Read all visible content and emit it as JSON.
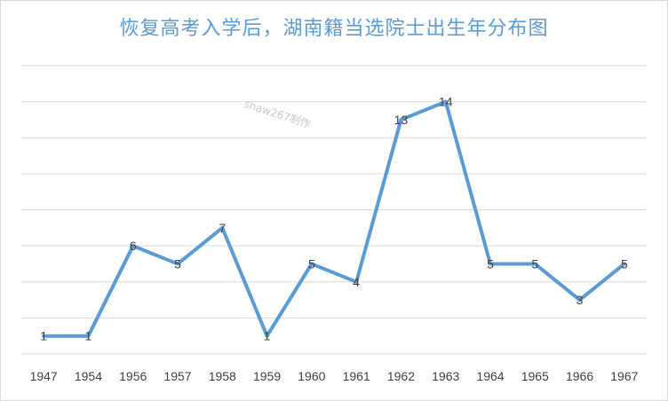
{
  "chart_data": {
    "type": "line",
    "title": "恢复高考入学后，湖南籍当选院士出生年分布图",
    "watermark": "shaw267制作",
    "categories": [
      "1947",
      "1954",
      "1956",
      "1957",
      "1958",
      "1959",
      "1960",
      "1961",
      "1962",
      "1963",
      "1964",
      "1965",
      "1966",
      "1967"
    ],
    "values": [
      1,
      1,
      6,
      5,
      7,
      1,
      5,
      4,
      13,
      14,
      5,
      5,
      3,
      5
    ],
    "ylim": [
      0,
      16
    ],
    "grid": true,
    "line_color": "#5b9bd5",
    "grid_color": "#d9d9d9"
  }
}
